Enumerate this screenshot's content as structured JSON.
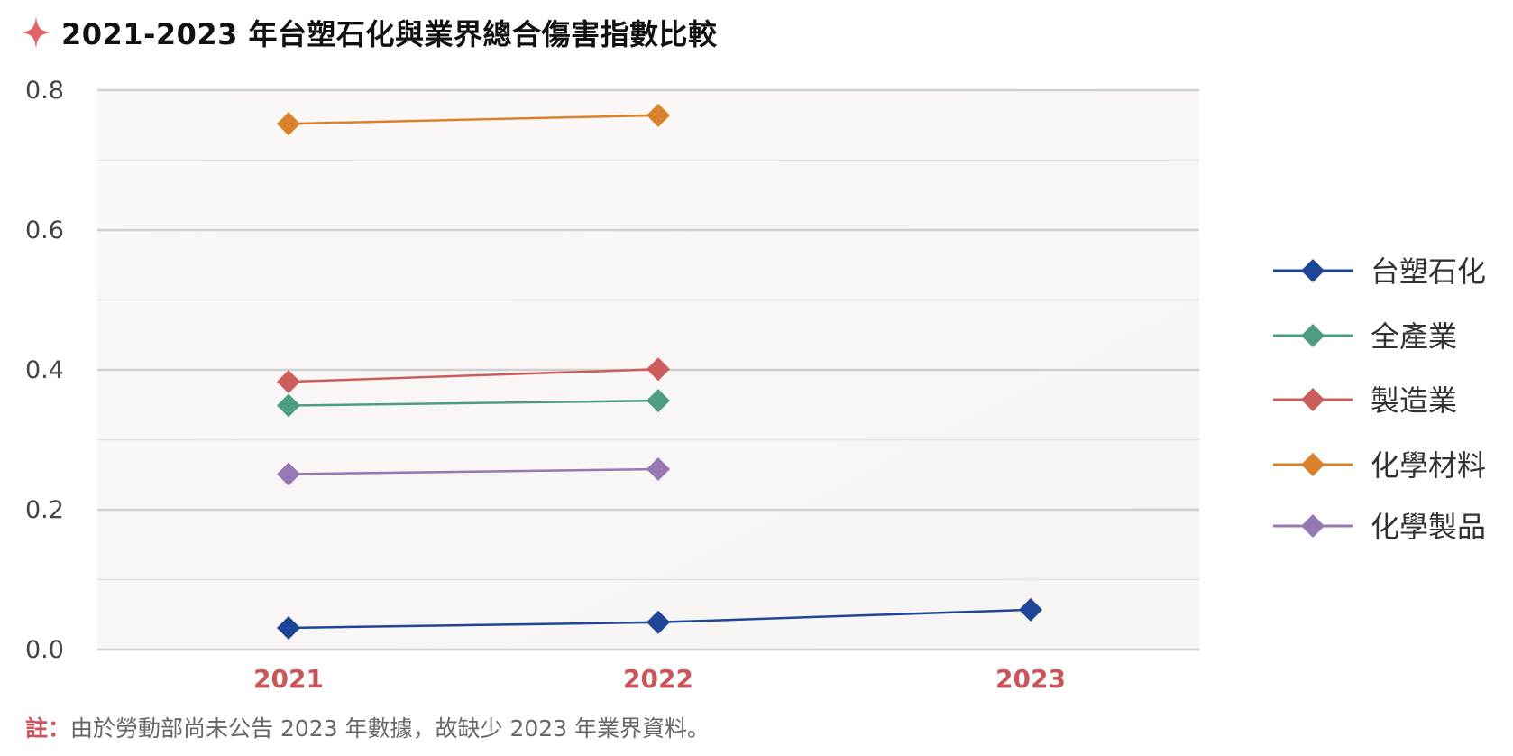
{
  "chart_data": {
    "type": "line",
    "title": "2021-2023 年台塑石化與業界總合傷害指數比較",
    "categories": [
      "2021",
      "2022",
      "2023"
    ],
    "ylim": [
      0,
      0.8
    ],
    "yticks": [
      "0.0",
      "0.2",
      "0.4",
      "0.6",
      "0.8"
    ],
    "grid": true,
    "legend_position": "right",
    "series": [
      {
        "name": "台塑石化",
        "color": "#1f4696",
        "values": [
          0.031,
          0.039,
          0.057
        ]
      },
      {
        "name": "全產業",
        "color": "#4d9e7e",
        "values": [
          0.349,
          0.356,
          null
        ]
      },
      {
        "name": "製造業",
        "color": "#cc5d5d",
        "values": [
          0.383,
          0.401,
          null
        ]
      },
      {
        "name": "化學材料",
        "color": "#d9822b",
        "values": [
          0.752,
          0.764,
          null
        ]
      },
      {
        "name": "化學製品",
        "color": "#9578b4",
        "values": [
          0.251,
          0.258,
          null
        ]
      }
    ]
  },
  "note": {
    "label": "註：",
    "text": "由於勞動部尚未公告 2023 年數據，故缺少 2023 年業界資料。"
  },
  "colors": {
    "accent": "#e06666",
    "category_label": "#c9565b",
    "axis_label": "#444444"
  },
  "title_icon": "sparkle-icon"
}
